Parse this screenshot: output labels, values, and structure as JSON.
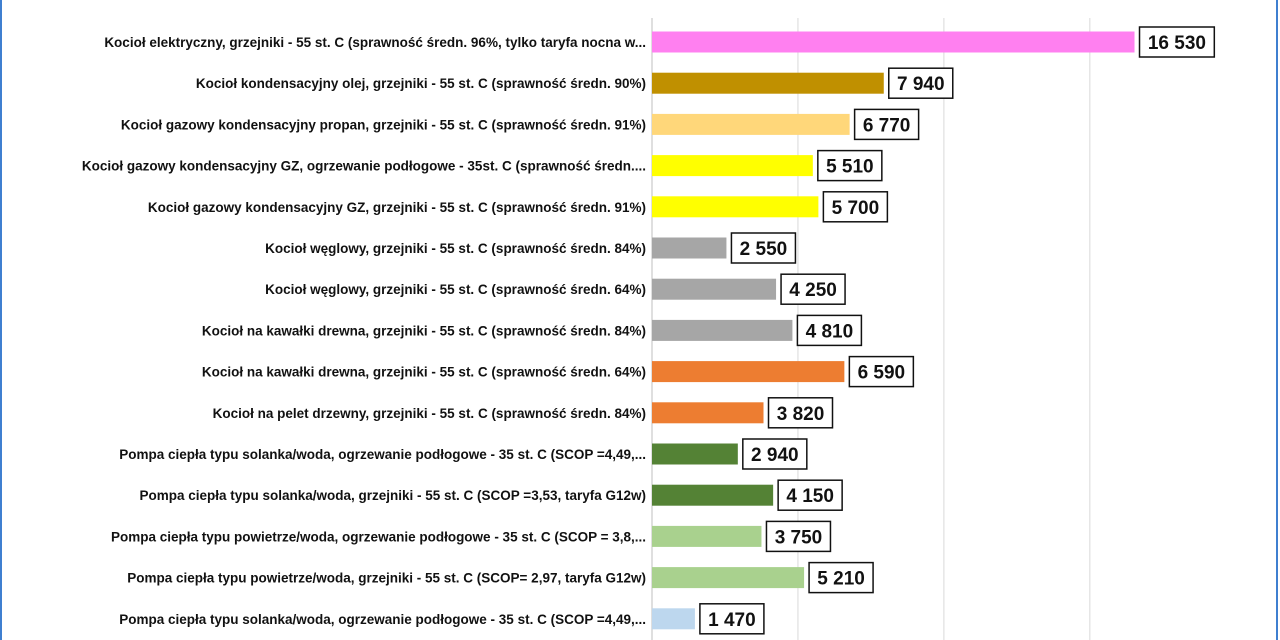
{
  "chart_data": {
    "type": "bar",
    "orientation": "horizontal",
    "title": "",
    "xlabel": "",
    "ylabel": "",
    "grid": true,
    "xlim": [
      0,
      17500
    ],
    "categories": [
      "Kocioł  elektryczny,  grzejniki - 55 st. C  (sprawność średn. 96%, tylko taryfa nocna w...",
      "Kocioł  kondensacyjny olej,  grzejniki - 55 st. C  (sprawność średn. 90%)",
      "Kocioł gazowy kondensacyjny propan, grzejniki - 55 st. C  (sprawność średn. 91%)",
      "Kocioł gazowy kondensacyjny GZ, ogrzewanie podłogowe - 35st. C   (sprawność średn....",
      "Kocioł gazowy kondensacyjny GZ, grzejniki - 55 st. C   (sprawność średn. 91%)",
      "Kocioł węglowy,  grzejniki - 55 st. C  (sprawność średn. 84%)",
      "Kocioł węglowy,  grzejniki - 55 st. C  (sprawność średn. 64%)",
      "Kocioł na kawałki drewna, grzejniki - 55 st. C (sprawność średn. 84%)",
      "Kocioł na kawałki drewna, grzejniki - 55 st. C  (sprawność średn. 64%)",
      "Kocioł na pelet drzewny, grzejniki - 55 st. C (sprawność średn. 84%)",
      "Pompa ciepła typu solanka/woda, ogrzewanie podłogowe - 35 st. C  (SCOP =4,49,...",
      "Pompa ciepła typu solanka/woda, grzejniki - 55 st. C (SCOP =3,53, taryfa G12w)",
      "Pompa ciepła typu powietrze/woda, ogrzewanie podłogowe - 35 st. C (SCOP = 3,8,...",
      "Pompa ciepła typu powietrze/woda, grzejniki - 55 st. C (SCOP= 2,97, taryfa G12w)",
      "Pompa ciepła typu solanka/woda, ogrzewanie podłogowe - 35 st. C  (SCOP =4,49,..."
    ],
    "values": [
      16530,
      7940,
      6770,
      5510,
      5700,
      2550,
      4250,
      4810,
      6590,
      3820,
      2940,
      4150,
      3750,
      5210,
      1470
    ],
    "value_labels": [
      "16 530",
      "7 940",
      "6 770",
      "5 510",
      "5 700",
      "2 550",
      "4 250",
      "4 810",
      "6 590",
      "3 820",
      "2 940",
      "4 150",
      "3 750",
      "5 210",
      "1 470"
    ],
    "colors": [
      "#ff80f0",
      "#c09000",
      "#ffd77a",
      "#ffff00",
      "#ffff00",
      "#a6a6a6",
      "#a6a6a6",
      "#a6a6a6",
      "#ed7d31",
      "#ed7d31",
      "#548235",
      "#548235",
      "#a9d18e",
      "#a9d18e",
      "#bdd7ee"
    ]
  }
}
